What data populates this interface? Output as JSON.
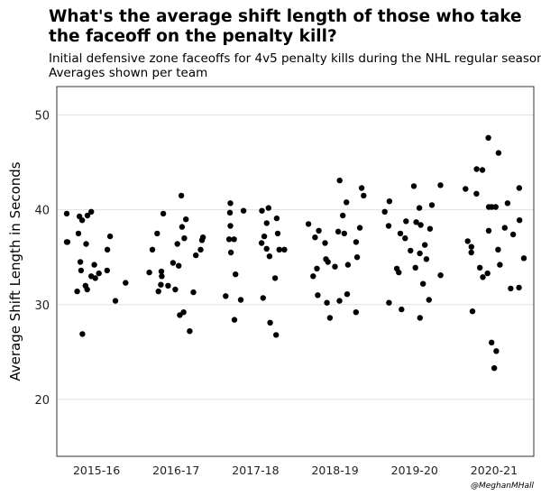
{
  "chart_data": {
    "type": "scatter",
    "title": "What's the average shift length of those who take the faceoff on the penalty kill?",
    "subtitle": [
      "Initial defensive zone faceoffs for 4v5 penalty kills during the NHL regular season",
      "Averages shown per team"
    ],
    "ylabel": "Average Shift Length in Seconds",
    "xlabel": "",
    "ylim": [
      14,
      53
    ],
    "yticks": [
      20,
      30,
      40,
      50
    ],
    "grid": true,
    "categories": [
      "2015-16",
      "2016-17",
      "2017-18",
      "2018-19",
      "2019-20",
      "2020-21"
    ],
    "series": [
      {
        "category": "2015-16",
        "values": [
          39.8,
          39.6,
          39.4,
          39.3,
          38.9,
          37.5,
          37.2,
          36.6,
          36.6,
          36.4,
          35.8,
          34.5,
          34.2,
          33.6,
          33.6,
          33.3,
          33.0,
          32.8,
          32.3,
          32.0,
          31.6,
          31.4,
          30.4,
          26.9
        ]
      },
      {
        "category": "2016-17",
        "values": [
          41.5,
          39.6,
          39.0,
          38.2,
          37.5,
          37.1,
          37.0,
          36.8,
          36.4,
          35.8,
          35.8,
          35.2,
          34.4,
          34.1,
          33.5,
          33.4,
          33.0,
          32.1,
          32.0,
          31.6,
          31.4,
          31.3,
          29.2,
          28.9,
          27.2
        ]
      },
      {
        "category": "2017-18",
        "values": [
          40.7,
          40.2,
          39.9,
          39.9,
          39.7,
          39.1,
          38.6,
          38.3,
          37.5,
          37.2,
          36.9,
          36.9,
          36.5,
          35.9,
          35.8,
          35.8,
          35.5,
          35.1,
          33.2,
          32.8,
          30.9,
          30.7,
          30.5,
          28.4,
          28.1,
          26.8
        ]
      },
      {
        "category": "2018-19",
        "values": [
          43.1,
          42.3,
          41.5,
          40.8,
          39.4,
          38.5,
          38.1,
          37.8,
          37.7,
          37.5,
          37.1,
          36.6,
          36.5,
          35.0,
          34.8,
          34.5,
          34.2,
          34.0,
          33.8,
          33.0,
          31.1,
          31.0,
          30.4,
          30.2,
          29.2,
          28.6
        ]
      },
      {
        "category": "2019-20",
        "values": [
          42.6,
          42.5,
          40.9,
          40.5,
          40.2,
          39.8,
          38.8,
          38.7,
          38.4,
          38.3,
          38.0,
          37.5,
          37.0,
          36.3,
          35.7,
          35.4,
          34.8,
          33.9,
          33.8,
          33.4,
          33.1,
          32.2,
          30.5,
          30.2,
          29.5,
          28.6
        ]
      },
      {
        "category": "2020-21",
        "values": [
          47.6,
          46.0,
          44.3,
          44.2,
          42.3,
          42.2,
          41.7,
          40.7,
          40.3,
          40.3,
          40.3,
          38.9,
          38.1,
          37.8,
          37.4,
          36.7,
          36.1,
          35.8,
          35.5,
          34.9,
          34.2,
          33.9,
          33.3,
          32.9,
          31.8,
          31.7,
          29.3,
          26.0,
          25.1,
          23.3
        ]
      }
    ],
    "point_color": "#000000",
    "grid_color": "#e0e0e0"
  },
  "caption": "@MeghanMHall"
}
